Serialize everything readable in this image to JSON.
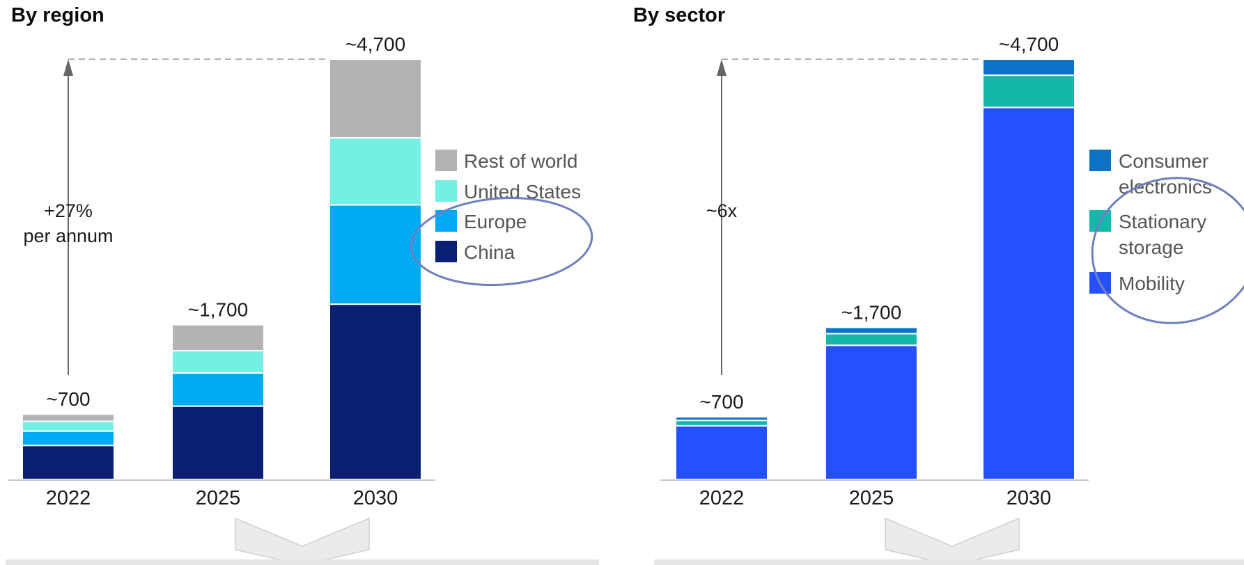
{
  "panels": {
    "region": {
      "title": "By region"
    },
    "sector": {
      "title": "By sector"
    }
  },
  "chart_data": [
    {
      "type": "bar",
      "stacked": true,
      "title": "By region",
      "categories": [
        "2022",
        "2025",
        "2030"
      ],
      "totals_labels": [
        "~700",
        "~1,700",
        "~4,700"
      ],
      "series": [
        {
          "name": "China",
          "color": "#0a1f73",
          "values": [
            380,
            820,
            1960
          ]
        },
        {
          "name": "Europe",
          "color": "#00a9f4",
          "values": [
            160,
            370,
            1110
          ]
        },
        {
          "name": "United States",
          "color": "#76efe3",
          "values": [
            110,
            250,
            750
          ]
        },
        {
          "name": "Rest of world",
          "color": "#b3b3b3",
          "values": [
            80,
            290,
            880
          ]
        }
      ],
      "ylim": [
        0,
        4700
      ],
      "legend_position": "right",
      "legend_order": [
        "Rest of world",
        "United States",
        "Europe",
        "China"
      ],
      "annotation": {
        "line1": "+27%",
        "line2": "per annum"
      },
      "grid": false
    },
    {
      "type": "bar",
      "stacked": true,
      "title": "By sector",
      "categories": [
        "2022",
        "2025",
        "2030"
      ],
      "totals_labels": [
        "~700",
        "~1,700",
        "~4,700"
      ],
      "series": [
        {
          "name": "Mobility",
          "color": "#2550ff",
          "values": [
            600,
            1500,
            4160
          ]
        },
        {
          "name": "Stationary storage",
          "color": "#14b8aa",
          "values": [
            60,
            130,
            360
          ]
        },
        {
          "name": "Consumer electronics",
          "color": "#0b73c7",
          "values": [
            40,
            70,
            180
          ]
        }
      ],
      "legend_labels": [
        {
          "name": "Consumer electronics",
          "lines": [
            "Consumer",
            "electronics"
          ]
        },
        {
          "name": "Stationary storage",
          "lines": [
            "Stationary",
            "storage"
          ]
        },
        {
          "name": "Mobility",
          "lines": [
            "Mobility"
          ]
        }
      ],
      "ylim": [
        0,
        4700
      ],
      "legend_position": "right",
      "annotation": {
        "line1": "~6x"
      },
      "grid": false
    }
  ]
}
